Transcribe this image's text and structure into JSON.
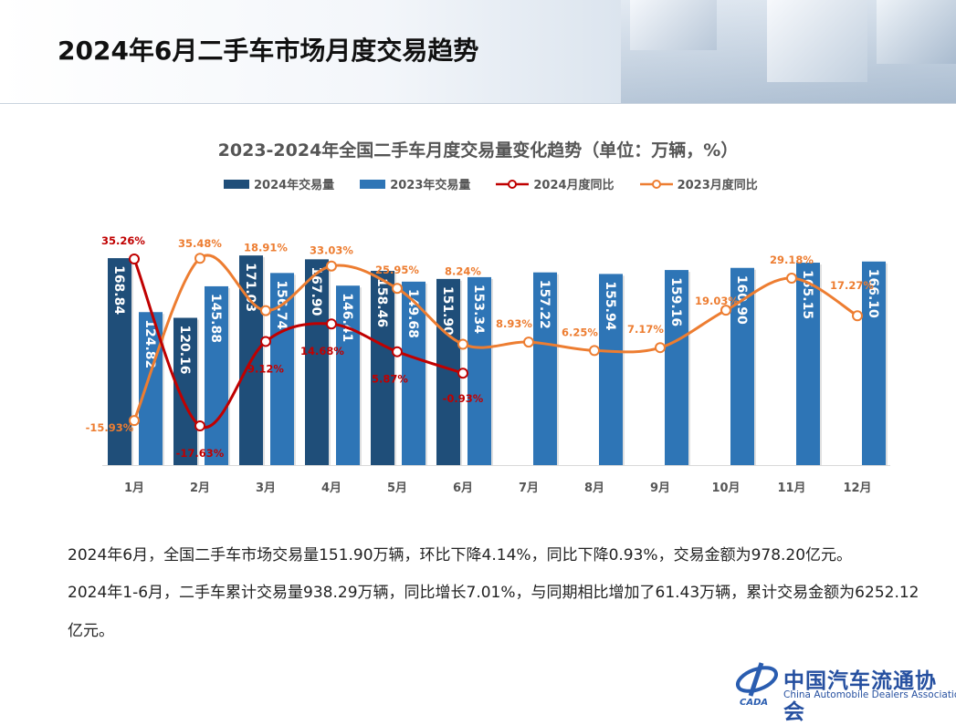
{
  "page_title": "2024年6月二手车市场月度交易趋势",
  "chart_data": {
    "type": "bar+line",
    "title": "2023-2024年全国二手车月度交易量变化趋势（单位：万辆，%）",
    "categories": [
      "1月",
      "2月",
      "3月",
      "4月",
      "5月",
      "6月",
      "7月",
      "8月",
      "9月",
      "10月",
      "11月",
      "12月"
    ],
    "legend_position": "top",
    "grid": false,
    "series": [
      {
        "name": "2024年交易量",
        "type": "bar",
        "color": "#1f4e79",
        "values": [
          168.84,
          120.16,
          171.03,
          167.9,
          158.46,
          151.9,
          null,
          null,
          null,
          null,
          null,
          null
        ]
      },
      {
        "name": "2023年交易量",
        "type": "bar",
        "color": "#2e75b6",
        "values": [
          124.82,
          145.88,
          156.74,
          146.41,
          149.68,
          153.34,
          157.22,
          155.94,
          159.16,
          160.9,
          165.15,
          166.1
        ]
      },
      {
        "name": "2024月度同比",
        "type": "line",
        "unit": "%",
        "color": "#c00000",
        "values": [
          35.26,
          -17.63,
          9.12,
          14.68,
          5.87,
          -0.93,
          null,
          null,
          null,
          null,
          null,
          null
        ]
      },
      {
        "name": "2023月度同比",
        "type": "line",
        "unit": "%",
        "color": "#ed7d31",
        "values": [
          -15.93,
          35.48,
          18.91,
          33.03,
          25.95,
          8.24,
          8.93,
          6.25,
          7.17,
          19.03,
          29.18,
          17.27
        ]
      }
    ]
  },
  "paragraphs": [
    "2024年6月，全国二手车市场交易量151.90万辆，环比下降4.14%，同比下降0.93%，交易金额为978.20亿元。",
    "2024年1-6月，二手车累计交易量938.29万辆，同比增长7.01%，与同期相比增加了61.43万辆，累计交易金额为6252.12",
    "亿元。"
  ],
  "logo": {
    "cn": "中国汽车流通协会",
    "en": "China Automobile Dealers Association",
    "mark": "CADA"
  }
}
